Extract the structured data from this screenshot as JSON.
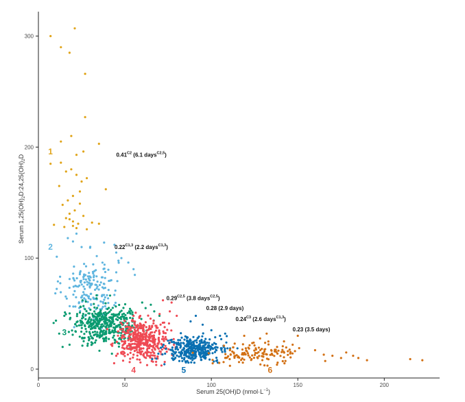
{
  "chart_data": {
    "type": "scatter",
    "title": "",
    "xlabel": {
      "main": "Serum 25(OH)D (nmol·L",
      "sup": "−1",
      "tail": ")"
    },
    "ylabel": {
      "main": "Serum 1,25(OH)",
      "sub1": "2",
      "mid": "D:24,25(OH)",
      "sub2": "2",
      "tail": "D"
    },
    "xlim": [
      0,
      232
    ],
    "ylim": [
      -8,
      322
    ],
    "x_ticks": [
      0,
      50,
      100,
      150,
      200
    ],
    "y_ticks": [
      0,
      100,
      200,
      300
    ],
    "grid": false,
    "legend": "none",
    "colors": {
      "c1": "#E0A419",
      "c2": "#5FB5DF",
      "c3": "#0A9B70",
      "c4": "#EF4A54",
      "c5": "#0A70B2",
      "c6": "#D27014",
      "axis": "#222222"
    },
    "series": [
      {
        "label": "1",
        "color_key": "c1",
        "points": [
          [
            7,
            300
          ],
          [
            21,
            307
          ],
          [
            13,
            290
          ],
          [
            18,
            285
          ],
          [
            27,
            266
          ],
          [
            27,
            227
          ],
          [
            13,
            205
          ],
          [
            19,
            210
          ],
          [
            35,
            203
          ],
          [
            7,
            185
          ],
          [
            13,
            186
          ],
          [
            22,
            193
          ],
          [
            26,
            196
          ],
          [
            28,
            172
          ],
          [
            39,
            162
          ],
          [
            12,
            165
          ],
          [
            16,
            178
          ],
          [
            19,
            180
          ],
          [
            22,
            175
          ],
          [
            25,
            169
          ],
          [
            17,
            152
          ],
          [
            20,
            156
          ],
          [
            24,
            160
          ],
          [
            14,
            148
          ],
          [
            18,
            140
          ],
          [
            21,
            143
          ],
          [
            24,
            149
          ],
          [
            26,
            138
          ],
          [
            16,
            136
          ],
          [
            20,
            129
          ],
          [
            23,
            131
          ],
          [
            28,
            126
          ],
          [
            31,
            132
          ],
          [
            35,
            131
          ],
          [
            9,
            130
          ],
          [
            15,
            128
          ],
          [
            18,
            135
          ],
          [
            22,
            127
          ],
          [
            20,
            133
          ]
        ]
      },
      {
        "label": "2",
        "color_key": "c2",
        "center": [
          30,
          74
        ],
        "spread": [
          8,
          14
        ],
        "n": 170,
        "extra": [
          [
            20,
            115
          ],
          [
            22,
            122
          ],
          [
            25,
            110
          ],
          [
            38,
            114
          ],
          [
            45,
            105
          ],
          [
            52,
            96
          ],
          [
            55,
            90
          ],
          [
            44,
            112
          ],
          [
            17,
            118
          ],
          [
            48,
            100
          ]
        ]
      },
      {
        "label": "3",
        "color_key": "c3",
        "center": [
          38,
          40
        ],
        "spread": [
          9.5,
          9
        ],
        "n": 420,
        "extra": [
          [
            14,
            20
          ],
          [
            12,
            32
          ],
          [
            15,
            48
          ],
          [
            62,
            55
          ],
          [
            65,
            58
          ],
          [
            67,
            52
          ],
          [
            70,
            48
          ],
          [
            18,
            22
          ],
          [
            60,
            60
          ]
        ]
      },
      {
        "label": "4",
        "color_key": "c4",
        "center": [
          60,
          26
        ],
        "spread": [
          7.5,
          8.5
        ],
        "n": 420,
        "extra": [
          [
            72,
            62
          ],
          [
            77,
            60
          ],
          [
            55,
            48
          ],
          [
            48,
            14
          ],
          [
            45,
            12
          ],
          [
            80,
            48
          ],
          [
            76,
            52
          ]
        ]
      },
      {
        "label": "5",
        "color_key": "c5",
        "center": [
          90,
          18
        ],
        "spread": [
          8,
          5.5
        ],
        "n": 340,
        "extra": [
          [
            88,
            43
          ],
          [
            91,
            48
          ],
          [
            95,
            40
          ],
          [
            100,
            35
          ],
          [
            108,
            32
          ],
          [
            105,
            30
          ]
        ]
      },
      {
        "label": "6",
        "color_key": "c6",
        "center": [
          126,
          14
        ],
        "spread": [
          12,
          5.5
        ],
        "n": 130,
        "extra": [
          [
            150,
            30
          ],
          [
            160,
            17
          ],
          [
            165,
            13
          ],
          [
            170,
            12
          ],
          [
            175,
            10
          ],
          [
            178,
            15
          ],
          [
            182,
            12
          ],
          [
            185,
            10
          ],
          [
            190,
            8
          ],
          [
            215,
            9
          ],
          [
            222,
            8
          ],
          [
            147,
            22
          ],
          [
            142,
            25
          ],
          [
            132,
            32
          ],
          [
            119,
            30
          ],
          [
            138,
            20
          ]
        ]
      }
    ],
    "cluster_labels": [
      {
        "text": "1",
        "x": 7,
        "y": 196,
        "color_key": "c1"
      },
      {
        "text": "2",
        "x": 7,
        "y": 110,
        "color_key": "c2"
      },
      {
        "text": "3",
        "x": 15,
        "y": 33,
        "color_key": "c3"
      },
      {
        "text": "4",
        "x": 55,
        "y": -1,
        "color_key": "c4"
      },
      {
        "text": "5",
        "x": 84,
        "y": -1,
        "color_key": "c5"
      },
      {
        "text": "6",
        "x": 134,
        "y": -1,
        "color_key": "c6"
      }
    ],
    "annotations": [
      {
        "x": 45,
        "y": 193,
        "parts": [
          [
            "0.41",
            ""
          ],
          [
            "C2",
            "sup"
          ],
          [
            " (6.1 days",
            ""
          ],
          [
            "C2,5",
            "sup"
          ],
          [
            ")",
            ""
          ]
        ]
      },
      {
        "x": 44,
        "y": 110,
        "parts": [
          [
            "0.22",
            ""
          ],
          [
            "C1,3",
            "sup"
          ],
          [
            " (2.2 days",
            ""
          ],
          [
            "C1,3",
            "sup"
          ],
          [
            ")",
            ""
          ]
        ]
      },
      {
        "x": 74,
        "y": 64,
        "parts": [
          [
            "0.29",
            ""
          ],
          [
            "C2,5",
            "sup"
          ],
          [
            " (3.8 days",
            ""
          ],
          [
            "C2,5",
            "sup"
          ],
          [
            ")",
            ""
          ]
        ]
      },
      {
        "x": 97,
        "y": 55,
        "parts": [
          [
            "0.28 (2.9 days)",
            ""
          ]
        ]
      },
      {
        "x": 114,
        "y": 45,
        "parts": [
          [
            "0.24",
            ""
          ],
          [
            "C3",
            "sup"
          ],
          [
            " (2.6 days",
            ""
          ],
          [
            "C1,3",
            "sup"
          ],
          [
            ")",
            ""
          ]
        ]
      },
      {
        "x": 147,
        "y": 36,
        "parts": [
          [
            "0.23 (3.5 days)",
            ""
          ]
        ]
      }
    ]
  }
}
